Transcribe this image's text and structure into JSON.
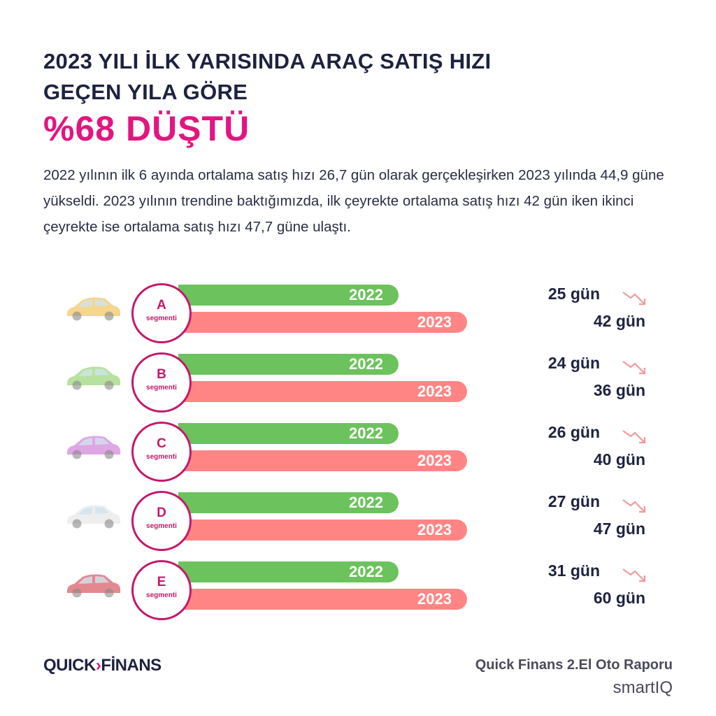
{
  "title": {
    "line1": "2023 YILI İLK YARISINDA ARAÇ SATIŞ HIZI",
    "line2": "GEÇEN YILA GÖRE",
    "highlight": "%68 DÜŞTÜ"
  },
  "paragraph": "2022 yılının ilk 6 ayında ortalama satış hızı 26,7 gün olarak gerçekleşirken 2023 yılında 44,9 güne yükseldi. 2023 yılının trendine baktığımızda, ilk çeyrekte ortalama satış hızı 42 gün iken ikinci çeyrekte ise ortalama satış hızı 47,7 güne ulaştı.",
  "colors": {
    "accent": "#e3157f",
    "bar_2022": "#6cc25c",
    "bar_2023": "#ff8585",
    "text": "#1e2240"
  },
  "segments": [
    {
      "letter": "A",
      "label": "segmenti",
      "year1": "2022",
      "year2": "2023",
      "value1": "25 gün",
      "value2": "42 gün",
      "car_color": "#f3c766"
    },
    {
      "letter": "B",
      "label": "segmenti",
      "year1": "2022",
      "year2": "2023",
      "value1": "24 gün",
      "value2": "36 gün",
      "car_color": "#9fd77d"
    },
    {
      "letter": "C",
      "label": "segmenti",
      "year1": "2022",
      "year2": "2023",
      "value1": "26 gün",
      "value2": "40 gün",
      "car_color": "#d38ad9"
    },
    {
      "letter": "D",
      "label": "segmenti",
      "year1": "2022",
      "year2": "2023",
      "value1": "27 gün",
      "value2": "47 gün",
      "car_color": "#e8e8e8"
    },
    {
      "letter": "E",
      "label": "segmenti",
      "year1": "2022",
      "year2": "2023",
      "value1": "31 gün",
      "value2": "60 gün",
      "car_color": "#d9606a"
    }
  ],
  "footer": {
    "logo_left": "QUICK",
    "logo_right": "FİNANS",
    "report": "Quick Finans 2.El Oto Raporu",
    "brand": "smartIQ"
  }
}
